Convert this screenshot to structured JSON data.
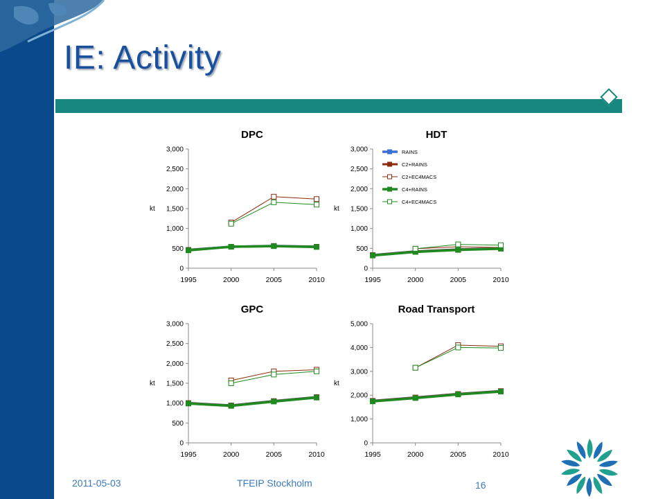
{
  "slide": {
    "title": "IE: Activity",
    "footer_date": "2011-05-03",
    "footer_event": "TFEIP Stockholm",
    "page_number": "16"
  },
  "colors": {
    "sidebar": "#0b4a8a",
    "title_bar": "#17877f",
    "title_text": "#1a4f9c",
    "RAINS": "#3b6fd4",
    "C2": "#8b2a0e",
    "C4": "#1f8a1f"
  },
  "chart_data": [
    {
      "type": "line",
      "title": "DPC",
      "ylabel": "kt",
      "x": [
        1995,
        2000,
        2005,
        2010
      ],
      "ylim": [
        0,
        3000
      ],
      "yticks": [
        "0",
        "500",
        "1,000",
        "1,500",
        "2,000",
        "2,500",
        "3,000"
      ],
      "series": [
        {
          "name": "RAINS",
          "values": [
            460,
            540,
            560,
            540
          ]
        },
        {
          "name": "C2+RAINS",
          "values": [
            460,
            540,
            560,
            540
          ]
        },
        {
          "name": "C2+EC4MACS",
          "values": [
            null,
            1150,
            1800,
            1740
          ]
        },
        {
          "name": "C4+RAINS",
          "values": [
            450,
            540,
            555,
            535
          ]
        },
        {
          "name": "C4+EC4MACS",
          "values": [
            null,
            1120,
            1660,
            1600
          ]
        }
      ]
    },
    {
      "type": "line",
      "title": "HDT",
      "ylabel": "kt",
      "x": [
        1995,
        2000,
        2005,
        2010
      ],
      "ylim": [
        0,
        3000
      ],
      "yticks": [
        "0",
        "500",
        "1,000",
        "1,500",
        "2,000",
        "2,500",
        "3,000"
      ],
      "legend": [
        "RAINS",
        "C2+RAINS",
        "C2+EC4MACS",
        "C4+RAINS",
        "C4+EC4MACS"
      ],
      "series": [
        {
          "name": "RAINS",
          "values": [
            330,
            420,
            470,
            500
          ]
        },
        {
          "name": "C2+RAINS",
          "values": [
            330,
            420,
            470,
            500
          ]
        },
        {
          "name": "C2+EC4MACS",
          "values": [
            null,
            490,
            540,
            520
          ]
        },
        {
          "name": "C4+RAINS",
          "values": [
            320,
            410,
            460,
            490
          ]
        },
        {
          "name": "C4+EC4MACS",
          "values": [
            null,
            490,
            600,
            580
          ]
        }
      ]
    },
    {
      "type": "line",
      "title": "GPC",
      "ylabel": "kt",
      "x": [
        1995,
        2000,
        2005,
        2010
      ],
      "ylim": [
        0,
        3000
      ],
      "yticks": [
        "0",
        "500",
        "1,000",
        "1,500",
        "2,000",
        "2,500",
        "3,000"
      ],
      "series": [
        {
          "name": "RAINS",
          "values": [
            1000,
            940,
            1050,
            1150
          ]
        },
        {
          "name": "C2+RAINS",
          "values": [
            1000,
            940,
            1050,
            1150
          ]
        },
        {
          "name": "C2+EC4MACS",
          "values": [
            null,
            1570,
            1800,
            1840
          ]
        },
        {
          "name": "C4+RAINS",
          "values": [
            990,
            930,
            1040,
            1140
          ]
        },
        {
          "name": "C4+EC4MACS",
          "values": [
            null,
            1500,
            1720,
            1800
          ]
        }
      ]
    },
    {
      "type": "line",
      "title": "Road Transport",
      "ylabel": "kt",
      "x": [
        1995,
        2000,
        2005,
        2010
      ],
      "ylim": [
        0,
        5000
      ],
      "yticks": [
        "0",
        "1,000",
        "2,000",
        "3,000",
        "4,000",
        "5,000"
      ],
      "series": [
        {
          "name": "RAINS",
          "values": [
            1760,
            1900,
            2050,
            2170
          ]
        },
        {
          "name": "C2+RAINS",
          "values": [
            1760,
            1900,
            2050,
            2170
          ]
        },
        {
          "name": "C2+EC4MACS",
          "values": [
            null,
            3150,
            4100,
            4050
          ]
        },
        {
          "name": "C4+RAINS",
          "values": [
            1740,
            1880,
            2030,
            2150
          ]
        },
        {
          "name": "C4+EC4MACS",
          "values": [
            null,
            3150,
            4000,
            3980
          ]
        }
      ]
    }
  ]
}
